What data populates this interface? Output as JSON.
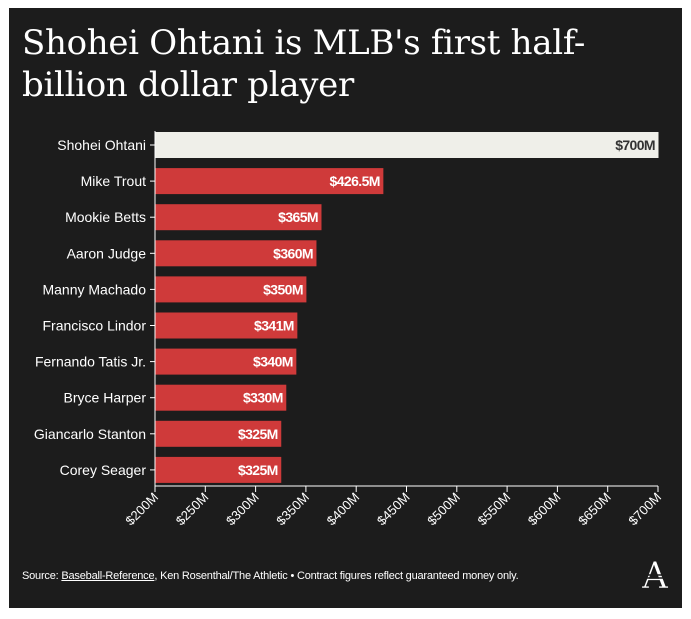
{
  "title": "Shohei Ohtani is MLB's first half-billion dollar player",
  "footer": {
    "prefix": "Source: ",
    "source_link": "Baseball-Reference",
    "suffix": ", Ken Rosenthal/The Athletic • Contract figures reflect guaranteed money only."
  },
  "logo": {
    "icon": "the-athletic-logo",
    "text": "A"
  },
  "colors": {
    "background": "#1c1c1c",
    "highlight_bar": "#efefe9",
    "bar": "#cf3a3a",
    "text": "#ffffff",
    "highlight_text": "#333333"
  },
  "chart_data": {
    "type": "bar",
    "orientation": "horizontal",
    "title": "Shohei Ohtani is MLB's first half-billion dollar player",
    "xlabel": "",
    "ylabel": "",
    "xlim": [
      200,
      700
    ],
    "x_ticks": [
      200,
      250,
      300,
      350,
      400,
      450,
      500,
      550,
      600,
      650,
      700
    ],
    "x_tick_labels": [
      "$200M",
      "$250M",
      "$300M",
      "$350M",
      "$400M",
      "$450M",
      "$500M",
      "$550M",
      "$600M",
      "$650M",
      "$700M"
    ],
    "grid": false,
    "categories": [
      "Shohei Ohtani",
      "Mike Trout",
      "Mookie Betts",
      "Aaron Judge",
      "Manny Machado",
      "Francisco Lindor",
      "Fernando Tatis Jr.",
      "Bryce Harper",
      "Giancarlo Stanton",
      "Corey Seager"
    ],
    "values": [
      700,
      426.5,
      365,
      360,
      350,
      341,
      340,
      330,
      325,
      325
    ],
    "value_labels": [
      "$700M",
      "$426.5M",
      "$365M",
      "$360M",
      "$350M",
      "$341M",
      "$340M",
      "$330M",
      "$325M",
      "$325M"
    ],
    "units": "millions USD",
    "highlight": "Shohei Ohtani"
  }
}
